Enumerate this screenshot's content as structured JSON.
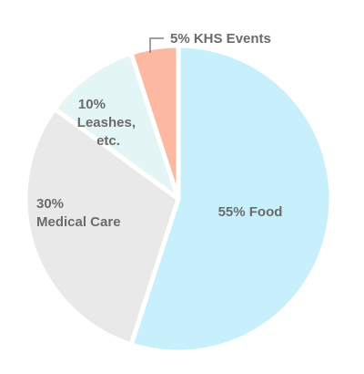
{
  "chart_data": {
    "type": "pie",
    "start": "top",
    "direction": "clockwise",
    "title": "",
    "slices": [
      {
        "label": "Food",
        "value": 55,
        "text_lines": [
          "55% Food"
        ],
        "color": "#c8effc"
      },
      {
        "label": "Medical Care",
        "value": 30,
        "text_lines": [
          "30%",
          "Medical Care"
        ],
        "color": "#e9e9e9"
      },
      {
        "label": "Leashes, etc.",
        "value": 10,
        "text_lines": [
          "10%",
          "Leashes,",
          "etc."
        ],
        "color": "#e4f5f6"
      },
      {
        "label": "KHS Events",
        "value": 5,
        "text_lines": [
          "5% KHS Events"
        ],
        "color": "#fcb8a1"
      }
    ],
    "separator_color": "#ffffff",
    "label_color": "#6b6b6b",
    "callout_color": "#808080"
  }
}
